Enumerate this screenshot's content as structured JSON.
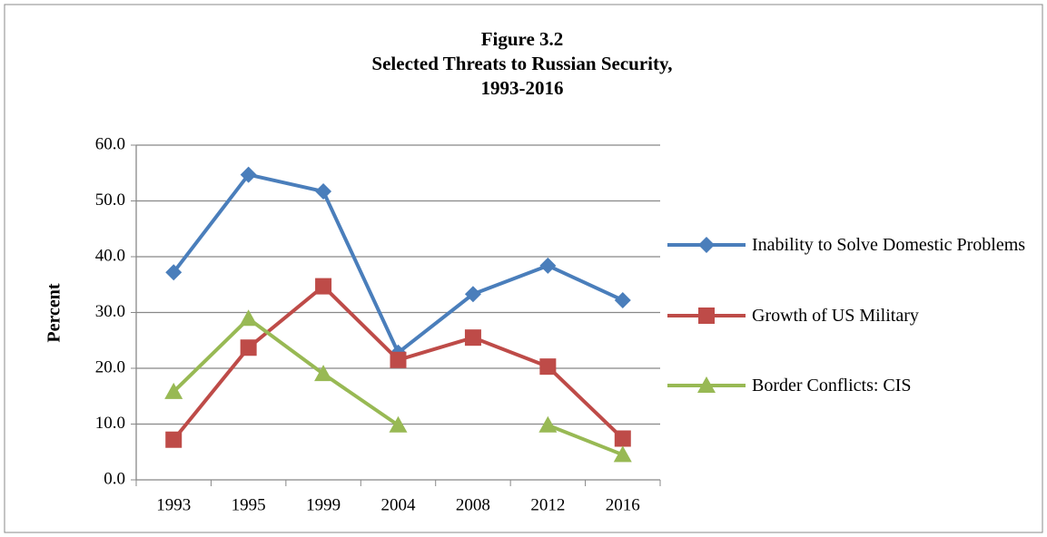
{
  "chart_data": {
    "type": "line",
    "title": [
      "Figure 3.2",
      "Selected Threats to Russian Security,",
      "1993-2016"
    ],
    "y_label": "Percent",
    "categories": [
      "1993",
      "1995",
      "1999",
      "2004",
      "2008",
      "2012",
      "2016"
    ],
    "series": [
      {
        "name": "Inability to Solve Domestic Problems",
        "color": "#4a7ebb",
        "marker": "diamond",
        "values": [
          37.2,
          54.7,
          51.7,
          22.8,
          33.3,
          38.4,
          32.2
        ]
      },
      {
        "name": "Growth of US Military",
        "color": "#be4b48",
        "marker": "square",
        "values": [
          7.2,
          23.7,
          34.7,
          21.5,
          25.5,
          20.3,
          7.4
        ]
      },
      {
        "name": "Border Conflicts: CIS",
        "color": "#98b954",
        "marker": "triangle",
        "values": [
          15.8,
          28.9,
          19.0,
          9.8,
          null,
          9.8,
          4.5
        ]
      }
    ],
    "ylim": [
      0,
      60
    ],
    "yticks": [
      {
        "value": 0,
        "label": "0.0"
      },
      {
        "value": 10,
        "label": "10.0"
      },
      {
        "value": 20,
        "label": "20.0"
      },
      {
        "value": 30,
        "label": "30.0"
      },
      {
        "value": 40,
        "label": "40.0"
      },
      {
        "value": 50,
        "label": "50.0"
      },
      {
        "value": 60,
        "label": "60.0"
      }
    ],
    "grid": true,
    "legend": "right"
  }
}
